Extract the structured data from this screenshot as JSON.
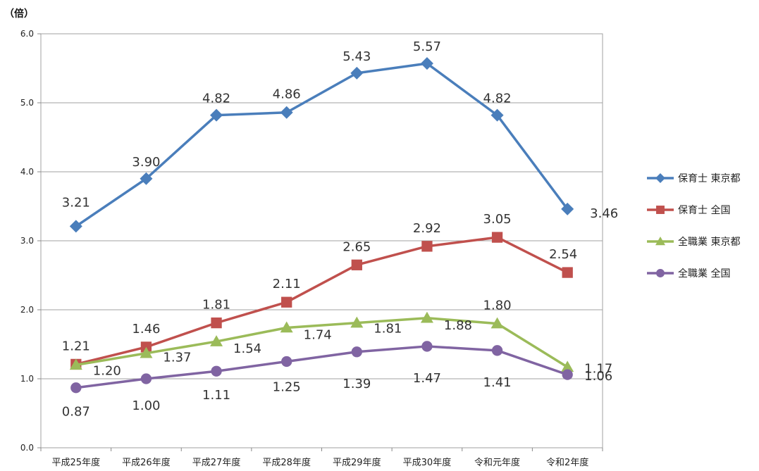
{
  "chart_data": {
    "type": "line",
    "unit_label": "（倍）",
    "categories": [
      "平成25年度",
      "平成26年度",
      "平成27年度",
      "平成28年度",
      "平成29年度",
      "平成30年度",
      "令和元年度",
      "令和2年度"
    ],
    "ylim": [
      0,
      6
    ],
    "yticks": [
      "0.0",
      "1.0",
      "2.0",
      "3.0",
      "4.0",
      "5.0",
      "6.0"
    ],
    "grid": true,
    "legend_position": "right",
    "series": [
      {
        "name": "保育士 東京都",
        "color": "#4a7ebb",
        "marker": "diamond",
        "values": [
          3.21,
          3.9,
          4.82,
          4.86,
          5.43,
          5.57,
          4.82,
          3.46
        ],
        "labels": [
          "3.21",
          "3.90",
          "4.82",
          "4.86",
          "5.43",
          "5.57",
          "4.82",
          "3.46"
        ]
      },
      {
        "name": "保育士 全国",
        "color": "#c0504d",
        "marker": "square",
        "values": [
          1.21,
          1.46,
          1.81,
          2.11,
          2.65,
          2.92,
          3.05,
          2.54
        ],
        "labels": [
          "1.21",
          "1.46",
          "1.81",
          "2.11",
          "2.65",
          "2.92",
          "3.05",
          "2.54"
        ]
      },
      {
        "name": "全職業 東京都",
        "color": "#9bbb59",
        "marker": "triangle",
        "values": [
          1.2,
          1.37,
          1.54,
          1.74,
          1.81,
          1.88,
          1.8,
          1.17
        ],
        "labels": [
          "1.20",
          "1.37",
          "1.54",
          "1.74",
          "1.81",
          "1.88",
          "1.80",
          "1.17"
        ]
      },
      {
        "name": "全職業 全国",
        "color": "#8064a2",
        "marker": "circle",
        "values": [
          0.87,
          1.0,
          1.11,
          1.25,
          1.39,
          1.47,
          1.41,
          1.06
        ],
        "labels": [
          "0.87",
          "1.00",
          "1.11",
          "1.25",
          "1.39",
          "1.47",
          "1.41",
          "1.06"
        ]
      }
    ]
  }
}
